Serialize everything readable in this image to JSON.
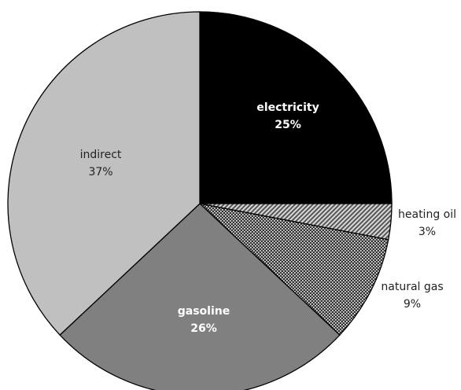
{
  "chart_data": {
    "type": "pie",
    "slices": [
      {
        "label": "electricity",
        "value": 25,
        "percent_label": "25%",
        "fill": "#000000",
        "pattern": "solid"
      },
      {
        "label": "heating oil",
        "value": 3,
        "percent_label": "3%",
        "fill": "#8c8c8c",
        "pattern": "diagonal-hatch"
      },
      {
        "label": "natural gas",
        "value": 9,
        "percent_label": "9%",
        "fill": "#3a3a3a",
        "pattern": "dotted"
      },
      {
        "label": "gasoline",
        "value": 26,
        "percent_label": "26%",
        "fill": "#808080",
        "pattern": "solid"
      },
      {
        "label": "indirect",
        "value": 37,
        "percent_label": "37%",
        "fill": "#c0c0c0",
        "pattern": "solid"
      }
    ],
    "start_angle": "12 o'clock",
    "direction": "clockwise",
    "legend": "none",
    "title": ""
  }
}
